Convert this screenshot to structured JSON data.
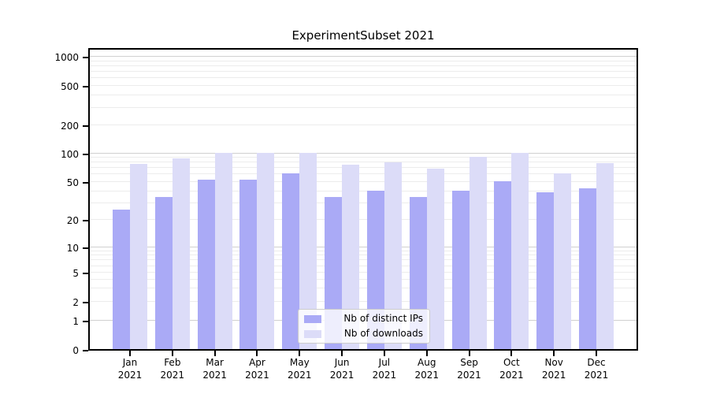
{
  "title": "ExperimentSubset 2021",
  "colors": {
    "ips_bar": "#aaaaf6",
    "downloads_bar": "#dcdcf8",
    "grid_major": "#d0d0d0",
    "grid_minor": "#ececec",
    "spine": "#000000",
    "legend_border": "#cccccc"
  },
  "y_axis": {
    "tick_labels": [
      "0",
      "1",
      "2",
      "5",
      "10",
      "20",
      "50",
      "100",
      "200",
      "500",
      "1000"
    ]
  },
  "legend": {
    "items": [
      {
        "label": "Nb of distinct IPs",
        "series": "ips"
      },
      {
        "label": "Nb of downloads",
        "series": "downloads"
      }
    ]
  },
  "chart_data": {
    "type": "bar",
    "title": "ExperimentSubset 2021",
    "categories": [
      "Jan 2021",
      "Feb 2021",
      "Mar 2021",
      "Apr 2021",
      "May 2021",
      "Jun 2021",
      "Jul 2021",
      "Aug 2021",
      "Sep 2021",
      "Oct 2021",
      "Nov 2021",
      "Dec 2021"
    ],
    "series": [
      {
        "name": "Nb of distinct IPs",
        "color": "#aaaaf6",
        "values": [
          25,
          34,
          52,
          52,
          61,
          34,
          40,
          34,
          40,
          50,
          38,
          42
        ]
      },
      {
        "name": "Nb of downloads",
        "color": "#dcdcf8",
        "values": [
          76,
          87,
          100,
          100,
          100,
          75,
          79,
          68,
          90,
          100,
          60,
          78
        ]
      }
    ],
    "xlabel": "",
    "ylabel": "",
    "yscale": "symlog",
    "y_ticks": [
      0,
      1,
      2,
      5,
      10,
      20,
      50,
      100,
      200,
      500,
      1000
    ],
    "ylim": [
      0,
      1100
    ],
    "grid": true,
    "legend_position": "lower center"
  }
}
